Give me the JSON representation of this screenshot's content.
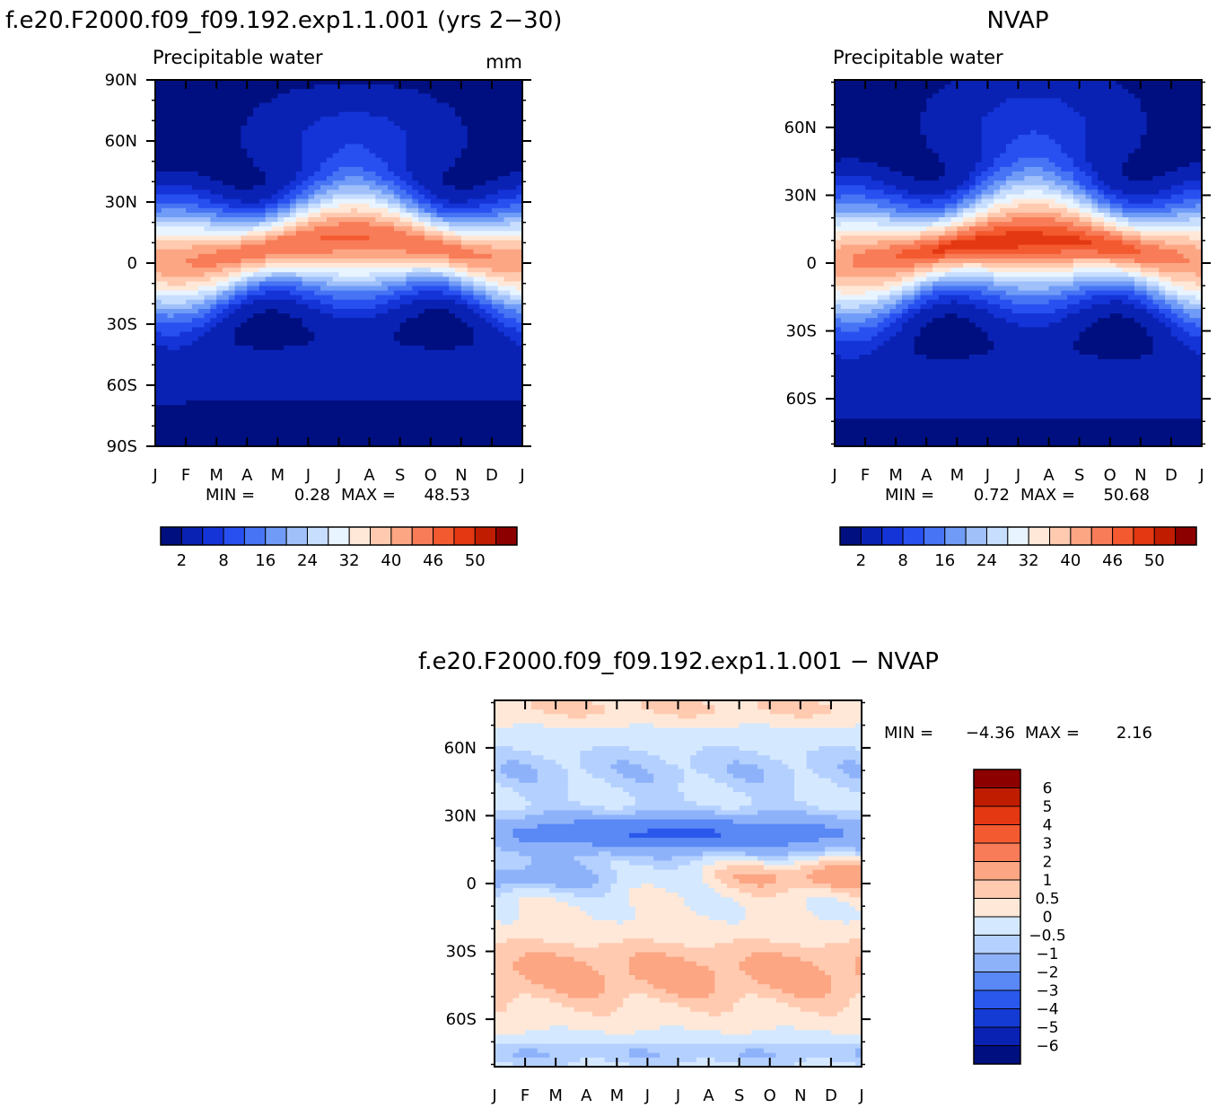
{
  "chart_data": [
    {
      "type": "heatmap",
      "title": "f.e20.F2000.f09_f09.192.exp1.1.001 (yrs 2−30)",
      "subtitle": "Precipitable water",
      "units": "mm",
      "x_ticks": [
        "J",
        "F",
        "M",
        "A",
        "M",
        "J",
        "J",
        "A",
        "S",
        "O",
        "N",
        "D",
        "J"
      ],
      "y_ticks": [
        "90N",
        "60N",
        "30N",
        "0",
        "30S",
        "60S",
        "90S"
      ],
      "ylim": [
        -90,
        90
      ],
      "min_label": "MIN =",
      "min_value": "0.28",
      "max_label": "MAX =",
      "max_value": "48.53",
      "colorbar_labels": [
        "2",
        "8",
        "16",
        "24",
        "32",
        "40",
        "46",
        "50"
      ]
    },
    {
      "type": "heatmap",
      "title": "NVAP",
      "subtitle": "Precipitable water",
      "x_ticks": [
        "J",
        "F",
        "M",
        "A",
        "M",
        "J",
        "J",
        "A",
        "S",
        "O",
        "N",
        "D",
        "J"
      ],
      "y_ticks": [
        "60N",
        "30N",
        "0",
        "30S",
        "60S"
      ],
      "ylim": [
        -81,
        81
      ],
      "min_label": "MIN =",
      "min_value": "0.72",
      "max_label": "MAX =",
      "max_value": "50.68",
      "colorbar_labels": [
        "2",
        "8",
        "16",
        "24",
        "32",
        "40",
        "46",
        "50"
      ]
    },
    {
      "type": "heatmap",
      "title": "f.e20.F2000.f09_f09.192.exp1.1.001 − NVAP",
      "x_ticks": [
        "J",
        "F",
        "M",
        "A",
        "M",
        "J",
        "J",
        "A",
        "S",
        "O",
        "N",
        "D",
        "J"
      ],
      "y_ticks": [
        "60N",
        "30N",
        "0",
        "30S",
        "60S"
      ],
      "ylim": [
        -81,
        81
      ],
      "min_label": "MIN =",
      "min_value": "−4.36",
      "max_label": "MAX =",
      "max_value": "2.16",
      "colorbar_labels": [
        "6",
        "5",
        "4",
        "3",
        "2",
        "1",
        "0.5",
        "0",
        "−0.5",
        "−1",
        "−2",
        "−3",
        "−4",
        "−5",
        "−6"
      ]
    }
  ],
  "palette": {
    "pw": [
      "#000f80",
      "#0a22b4",
      "#1434d8",
      "#2850f0",
      "#4674f4",
      "#709cf8",
      "#a0c0fa",
      "#c8deff",
      "#e8f4ff",
      "#ffe8d8",
      "#ffcab0",
      "#fca684",
      "#f87c58",
      "#f45a30",
      "#e43812",
      "#c01c00",
      "#8c0000"
    ],
    "diff": [
      "#8c0000",
      "#c01c00",
      "#e43812",
      "#f45a30",
      "#f87c58",
      "#fca684",
      "#ffcab0",
      "#ffe8d8",
      "#d4e8ff",
      "#b4d0ff",
      "#8eb2fa",
      "#5a88f4",
      "#2a58ec",
      "#143cd4",
      "#0a22b4",
      "#000f80"
    ]
  }
}
